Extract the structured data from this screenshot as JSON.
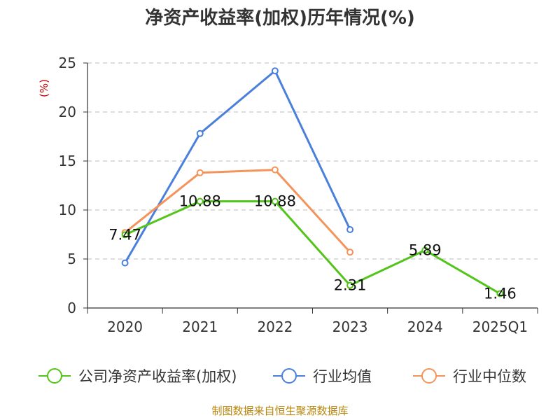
{
  "chart_data": {
    "type": "line",
    "title": "净资产收益率(加权)历年情况(%)",
    "ylabel": "(%)",
    "xlabel": "",
    "ylim": [
      0,
      25
    ],
    "yticks": [
      0,
      5,
      10,
      15,
      20,
      25
    ],
    "grid": true,
    "categories": [
      "2020",
      "2021",
      "2022",
      "2023",
      "2024",
      "2025Q1"
    ],
    "series": [
      {
        "name": "公司净资产收益率(加权)",
        "color": "#52c41a",
        "values": [
          7.47,
          10.88,
          10.88,
          2.31,
          5.89,
          1.46
        ],
        "labels": [
          "7.47",
          "10.88",
          "10.88",
          "2.31",
          "5.89",
          "1.46"
        ]
      },
      {
        "name": "行业均值",
        "color": "#4a7fdb",
        "values": [
          4.6,
          17.8,
          24.2,
          8.0,
          null,
          null
        ]
      },
      {
        "name": "行业中位数",
        "color": "#f4935a",
        "values": [
          7.7,
          13.8,
          14.1,
          5.7,
          null,
          null
        ]
      }
    ],
    "legend_position": "bottom",
    "source": "制图数据来自恒生聚源数据库"
  }
}
